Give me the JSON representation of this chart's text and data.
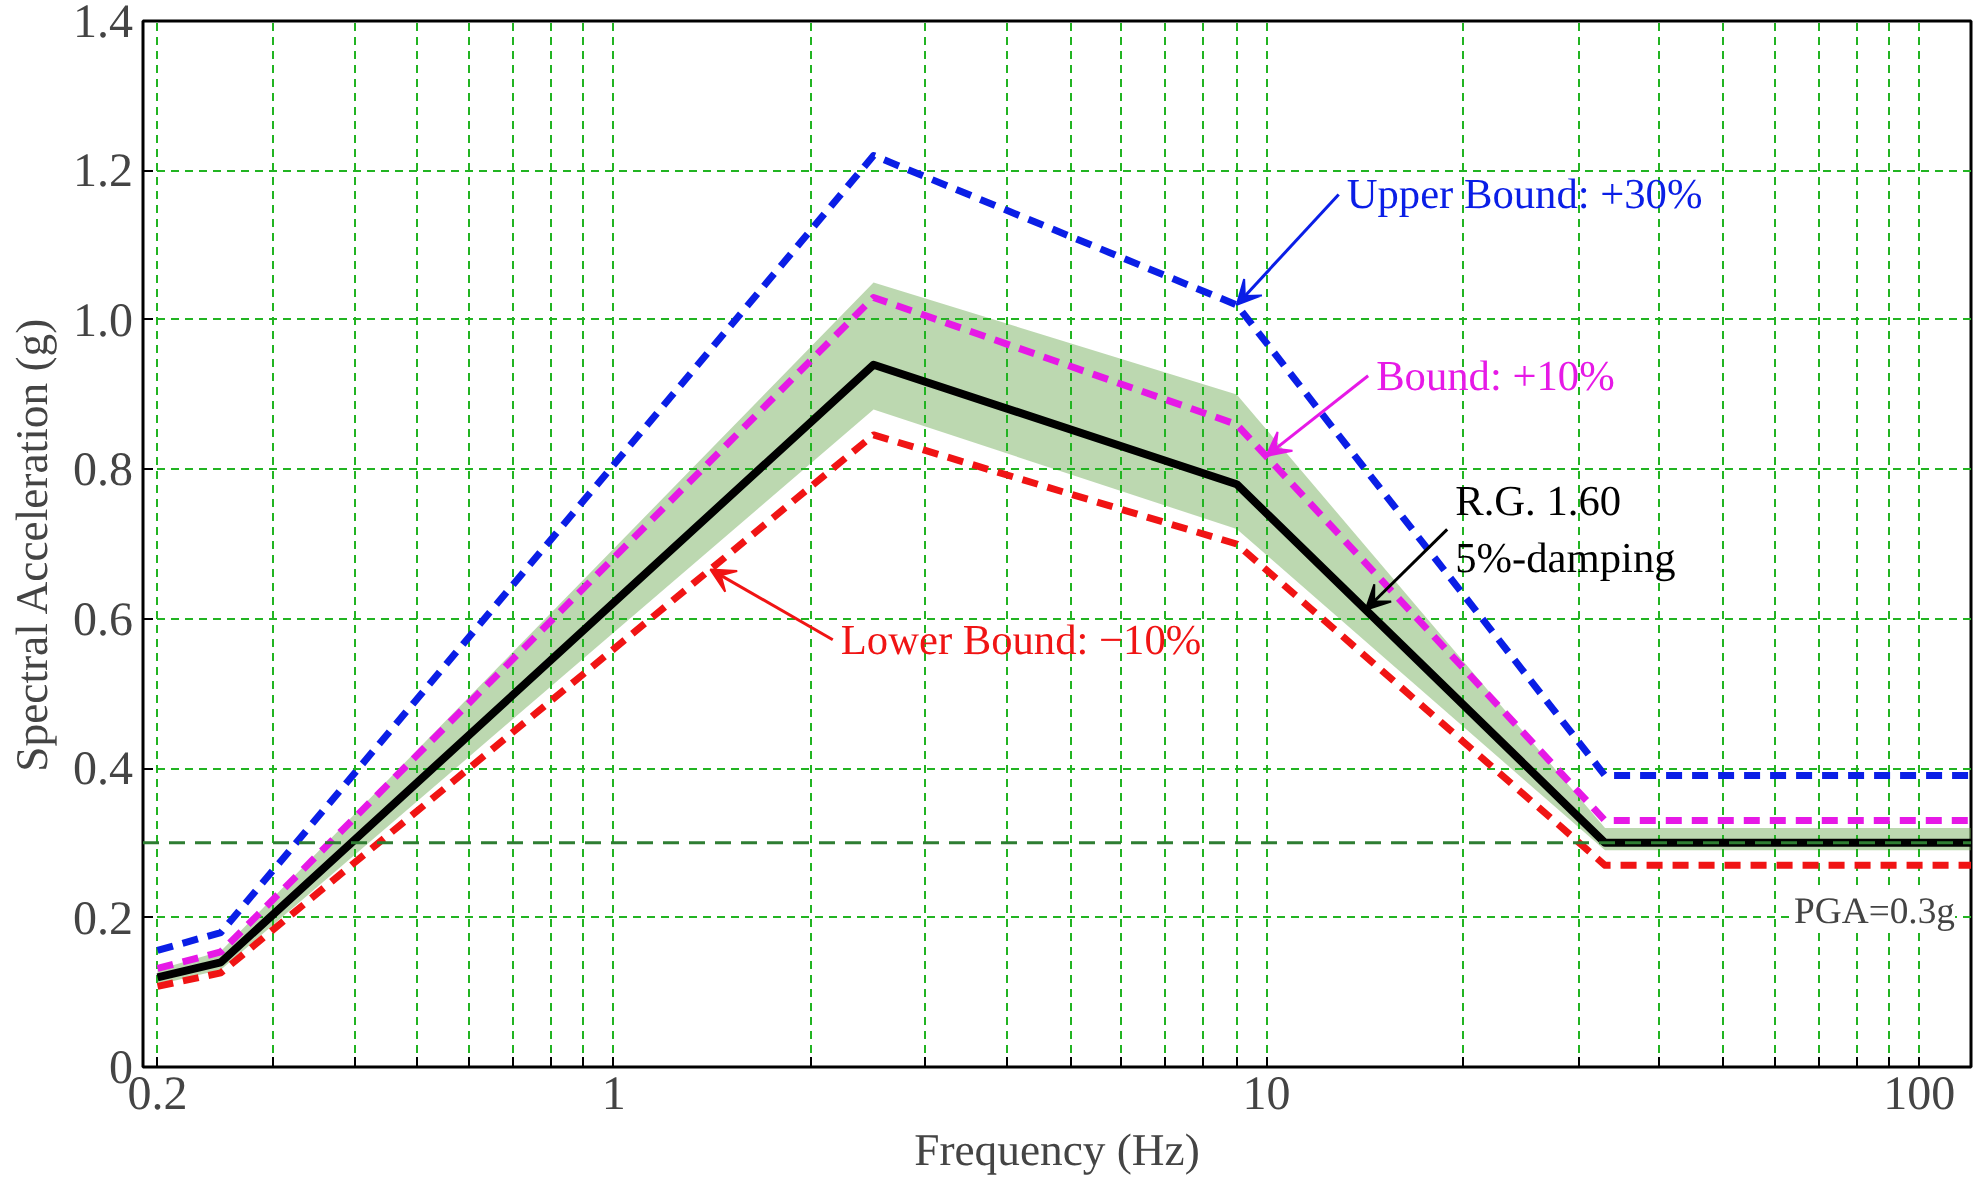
{
  "chart_data": {
    "type": "line",
    "xlabel": "Frequency (Hz)",
    "ylabel": "Spectral Acceleration (g)",
    "log": "x",
    "xlim": [
      0.19,
      120
    ],
    "ylim": [
      0,
      1.4
    ],
    "xticks": [
      0.2,
      {
        "value": 0.3,
        "label": null
      },
      {
        "value": 0.4,
        "label": null
      },
      {
        "value": 0.5,
        "label": null
      },
      {
        "value": 0.6,
        "label": null
      },
      {
        "value": 0.7,
        "label": null
      },
      {
        "value": 0.8,
        "label": null
      },
      {
        "value": 0.9,
        "label": null
      },
      1,
      {
        "value": 2,
        "label": null
      },
      {
        "value": 3,
        "label": null
      },
      {
        "value": 4,
        "label": null
      },
      {
        "value": 5,
        "label": null
      },
      {
        "value": 6,
        "label": null
      },
      {
        "value": 7,
        "label": null
      },
      {
        "value": 8,
        "label": null
      },
      {
        "value": 9,
        "label": null
      },
      10,
      {
        "value": 20,
        "label": null
      },
      {
        "value": 30,
        "label": null
      },
      {
        "value": 40,
        "label": null
      },
      {
        "value": 50,
        "label": null
      },
      {
        "value": 60,
        "label": null
      },
      {
        "value": 70,
        "label": null
      },
      {
        "value": 80,
        "label": null
      },
      {
        "value": 90,
        "label": null
      },
      100
    ],
    "yticks": [
      0,
      0.2,
      0.4,
      0.6,
      0.8,
      {
        "value": 1,
        "label": "1.0"
      },
      1.2,
      1.4
    ],
    "grid": true,
    "line_style": "dashed",
    "x": [
      0.2,
      0.25,
      2.5,
      9,
      33,
      120
    ],
    "series": [
      {
        "name": "Upper Bound: +30%",
        "color": "#0a1ee6",
        "values": [
          0.156,
          0.18,
          1.22,
          1.02,
          0.39,
          0.39
        ]
      },
      {
        "name": "Bound: +10%",
        "color": "#e619e6",
        "values": [
          0.132,
          0.154,
          1.03,
          0.86,
          0.33,
          0.33
        ]
      },
      {
        "name": "R.G. 1.60\n5%-damping",
        "color": "#000000",
        "line_style": "solid",
        "values": [
          0.12,
          0.14,
          0.94,
          0.78,
          0.3,
          0.3
        ],
        "lower": [
          0.11,
          0.13,
          0.88,
          0.72,
          0.29,
          0.29
        ],
        "upper": [
          0.13,
          0.155,
          1.05,
          0.9,
          0.32,
          0.32
        ]
      },
      {
        "name": "Lower Bound: −10%",
        "color": "#f01414",
        "values": [
          0.108,
          0.126,
          0.846,
          0.7,
          0.27,
          0.27
        ]
      }
    ],
    "ref_lines": [
      {
        "axis": "y",
        "value": 0.3,
        "label": "PGA=0.3g",
        "color": "#2e7d32",
        "line_style": "dashed"
      }
    ]
  }
}
